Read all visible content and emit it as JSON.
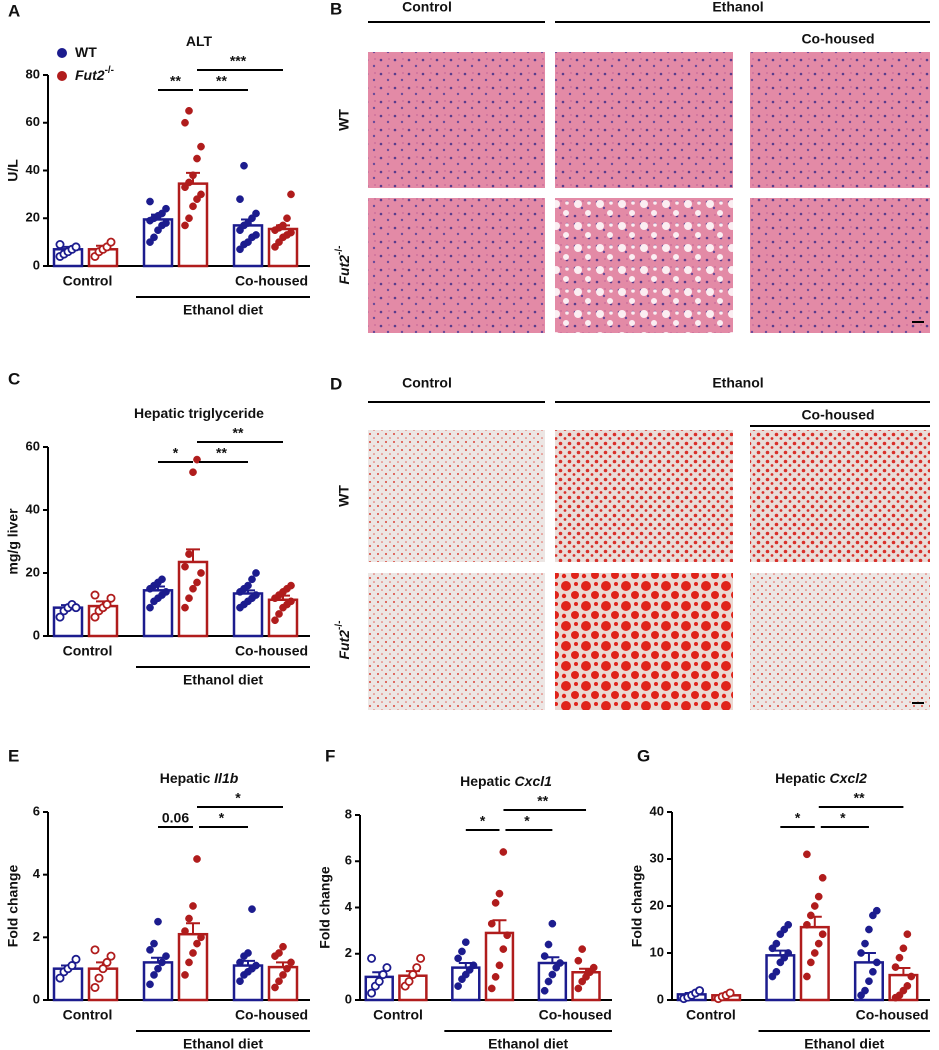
{
  "chart_data": [
    {
      "type": "bar",
      "letter": "A",
      "title": "ALT",
      "ylabel": "U/L",
      "ylim": [
        0,
        80
      ],
      "yticks": [
        0,
        20,
        40,
        60,
        80
      ],
      "groups": [
        "Control",
        "Ethanol diet",
        "Co-housed"
      ],
      "series": [
        {
          "name": "WT",
          "color": "#1c1c8e",
          "values": [
            7,
            19.5,
            17
          ],
          "errors": [
            1,
            2,
            2.5
          ],
          "points": [
            [
              4,
              5,
              6,
              7,
              8,
              9
            ],
            [
              10,
              12,
              15,
              17,
              18,
              19,
              20,
              21,
              22,
              24,
              27
            ],
            [
              7,
              9,
              10,
              12,
              13,
              15,
              17,
              18,
              20,
              22,
              28,
              42
            ]
          ]
        },
        {
          "name": "Fut2",
          "name_sup": "-/-",
          "color": "#b01c1c",
          "values": [
            7,
            34.5,
            15.5
          ],
          "errors": [
            1.5,
            4.5,
            1.5
          ],
          "points": [
            [
              4,
              6,
              7,
              8,
              10
            ],
            [
              17,
              20,
              25,
              28,
              30,
              33,
              35,
              38,
              45,
              50,
              60,
              65
            ],
            [
              8,
              10,
              12,
              13,
              14,
              15,
              16,
              17,
              20,
              30
            ]
          ]
        }
      ],
      "significance": [
        "**",
        "**",
        "***"
      ]
    },
    {
      "type": "bar",
      "letter": "C",
      "title": "Hepatic triglyceride",
      "ylabel": "mg/g liver",
      "ylim": [
        0,
        60
      ],
      "yticks": [
        0,
        20,
        40,
        60
      ],
      "groups": [
        "Control",
        "Ethanol diet",
        "Co-housed"
      ],
      "series": [
        {
          "color": "#1c1c8e",
          "values": [
            9,
            14.5,
            13.5
          ],
          "errors": [
            0.8,
            1.2,
            1
          ],
          "points": [
            [
              6,
              8,
              9,
              10,
              9
            ],
            [
              9,
              11,
              12,
              13,
              14,
              15,
              16,
              17,
              18
            ],
            [
              9,
              10,
              11,
              12,
              13,
              14,
              15,
              16,
              18,
              20
            ]
          ]
        },
        {
          "color": "#b01c1c",
          "values": [
            9.5,
            23.5,
            11.5
          ],
          "errors": [
            1.5,
            4,
            1.3
          ],
          "points": [
            [
              6,
              8,
              9,
              10,
              12,
              13
            ],
            [
              9,
              12,
              15,
              17,
              20,
              22,
              26,
              52,
              56
            ],
            [
              5,
              7,
              9,
              10,
              11,
              12,
              13,
              14,
              15,
              16
            ]
          ]
        }
      ],
      "significance": [
        "*",
        "**",
        "**"
      ]
    },
    {
      "type": "bar",
      "letter": "E",
      "title": "Hepatic",
      "title_gene": "Il1b",
      "ylabel": "Fold change",
      "ylim": [
        0,
        6
      ],
      "yticks": [
        0,
        2,
        4,
        6
      ],
      "groups": [
        "Control",
        "Ethanol diet",
        "Co-housed"
      ],
      "series": [
        {
          "color": "#1c1c8e",
          "values": [
            1.0,
            1.2,
            1.1
          ],
          "errors": [
            0.1,
            0.15,
            0.15
          ],
          "points": [
            [
              0.7,
              0.9,
              1,
              1.1,
              1.3
            ],
            [
              0.5,
              0.8,
              1,
              1.2,
              1.4,
              1.6,
              1.8,
              2.5
            ],
            [
              0.6,
              0.8,
              0.9,
              1,
              1.1,
              1.2,
              1.4,
              1.5,
              2.9
            ]
          ]
        },
        {
          "color": "#b01c1c",
          "values": [
            1.0,
            2.1,
            1.05
          ],
          "errors": [
            0.2,
            0.35,
            0.15
          ],
          "points": [
            [
              0.4,
              0.7,
              1,
              1.2,
              1.4,
              1.6
            ],
            [
              0.8,
              1.2,
              1.5,
              1.8,
              2.0,
              2.2,
              2.6,
              3.0,
              4.5
            ],
            [
              0.4,
              0.6,
              0.8,
              1,
              1.2,
              1.4,
              1.5,
              1.7
            ]
          ]
        }
      ],
      "significance": [
        "0.06",
        "*",
        "*"
      ]
    },
    {
      "type": "bar",
      "letter": "F",
      "title": "Hepatic",
      "title_gene": "Cxcl1",
      "ylabel": "Fold change",
      "ylim": [
        0,
        8
      ],
      "yticks": [
        0,
        2,
        4,
        6,
        8
      ],
      "groups": [
        "Control",
        "Ethanol diet",
        "Co-housed"
      ],
      "series": [
        {
          "color": "#1c1c8e",
          "values": [
            1.0,
            1.4,
            1.6
          ],
          "errors": [
            0.2,
            0.2,
            0.25
          ],
          "points": [
            [
              0.3,
              0.6,
              0.8,
              1.1,
              1.4,
              1.8
            ],
            [
              0.6,
              0.9,
              1.1,
              1.3,
              1.5,
              1.8,
              2.1,
              2.5
            ],
            [
              0.4,
              0.8,
              1.1,
              1.4,
              1.6,
              1.9,
              2.4,
              3.3
            ]
          ]
        },
        {
          "color": "#b01c1c",
          "values": [
            1.05,
            2.9,
            1.2
          ],
          "errors": [
            0.2,
            0.55,
            0.15
          ],
          "points": [
            [
              0.6,
              0.8,
              1.1,
              1.4,
              1.8
            ],
            [
              0.5,
              1,
              1.5,
              2.2,
              2.8,
              3.3,
              4.2,
              4.6,
              6.4
            ],
            [
              0.5,
              0.8,
              1.0,
              1.2,
              1.4,
              1.7,
              2.2
            ]
          ]
        }
      ],
      "significance": [
        "*",
        "*",
        "**"
      ]
    },
    {
      "type": "bar",
      "letter": "G",
      "title": "Hepatic",
      "title_gene": "Cxcl2",
      "ylabel": "Fold change",
      "ylim": [
        0,
        40
      ],
      "yticks": [
        0,
        10,
        20,
        30,
        40
      ],
      "groups": [
        "Control",
        "Ethanol diet",
        "Co-housed"
      ],
      "series": [
        {
          "color": "#1c1c8e",
          "values": [
            1.2,
            9.5,
            8
          ],
          "errors": [
            0.3,
            1,
            2
          ],
          "points": [
            [
              0.3,
              0.6,
              1,
              1.5,
              2
            ],
            [
              5,
              6,
              8,
              9,
              10,
              11,
              12,
              14,
              15,
              16
            ],
            [
              1,
              2,
              4,
              6,
              8,
              10,
              12,
              15,
              18,
              19
            ]
          ]
        },
        {
          "color": "#b01c1c",
          "values": [
            1.0,
            15.5,
            5.3
          ],
          "errors": [
            0.3,
            2.2,
            1.5
          ],
          "points": [
            [
              0.3,
              0.7,
              1,
              1.5
            ],
            [
              5,
              8,
              10,
              12,
              14,
              16,
              18,
              20,
              22,
              26,
              31
            ],
            [
              0.5,
              1,
              2,
              3,
              5,
              7,
              9,
              11,
              14
            ]
          ]
        }
      ],
      "significance": [
        "*",
        "*",
        "**"
      ]
    }
  ],
  "image_panels": [
    {
      "letter": "B",
      "columns": [
        "Control",
        "Ethanol",
        "Co-housed"
      ],
      "rows": [
        "WT",
        "Fut2"
      ],
      "row_sup": "-/-"
    },
    {
      "letter": "D",
      "columns": [
        "Control",
        "Ethanol",
        "Co-housed"
      ],
      "rows": [
        "WT",
        "Fut2"
      ],
      "row_sup": "-/-"
    }
  ]
}
